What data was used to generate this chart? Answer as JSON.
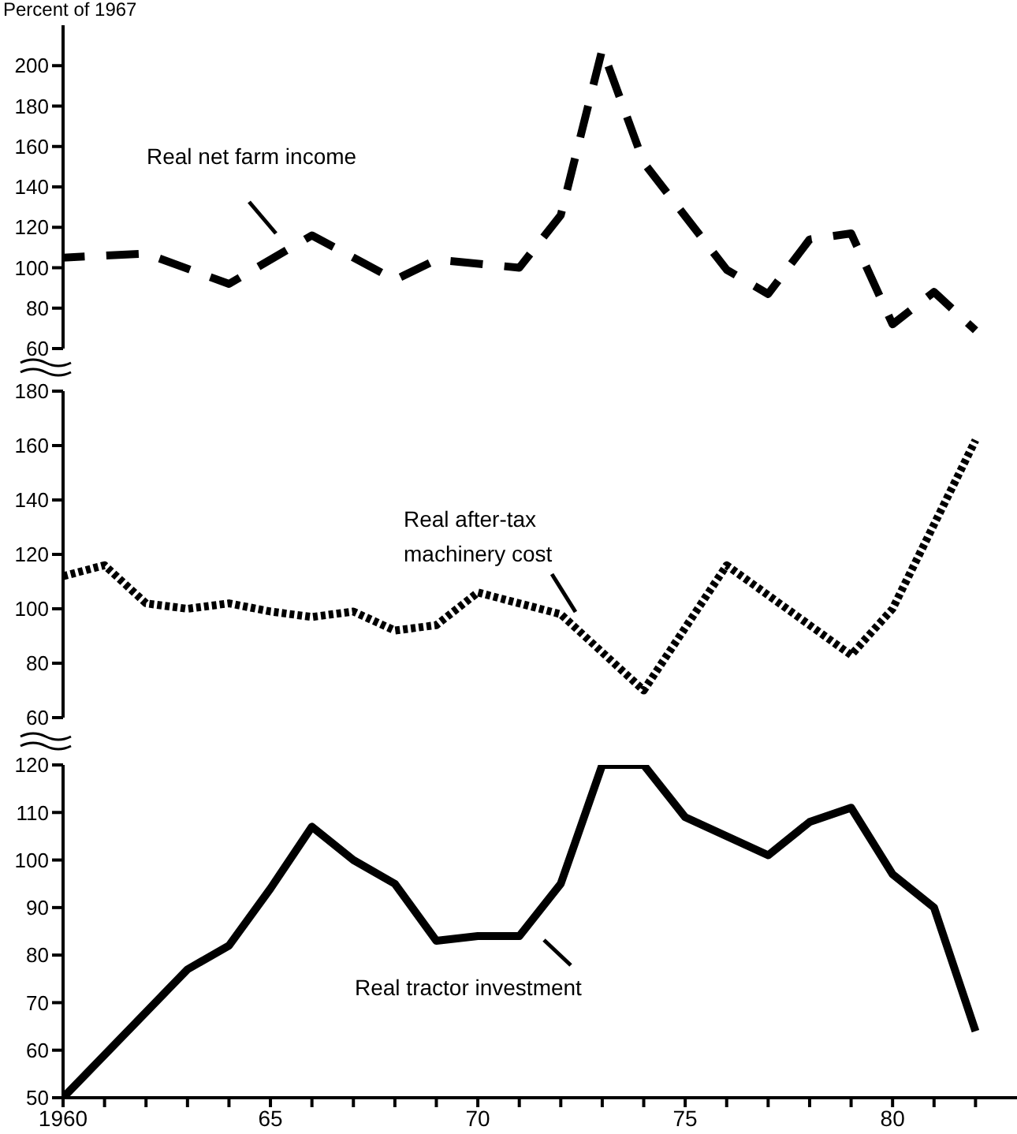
{
  "chart_data": [
    {
      "type": "line",
      "ylabel": "Percent of 1967",
      "xlim": [
        1960,
        1983
      ],
      "ylim": [
        60,
        220
      ],
      "yticks": [
        60,
        80,
        100,
        120,
        140,
        160,
        180,
        200
      ],
      "tick_labels": "y",
      "series": [
        {
          "name": "Real net farm income",
          "color": "#000000",
          "line_style": "dashed",
          "x": [
            1960,
            1962,
            1964,
            1966,
            1968,
            1969,
            1971,
            1972,
            1973,
            1974,
            1976,
            1977,
            1978,
            1979,
            1980,
            1981,
            1982
          ],
          "values": [
            105,
            107,
            92,
            116,
            94,
            104,
            100,
            126,
            208,
            152,
            99,
            87,
            114,
            117,
            72,
            88,
            69
          ]
        }
      ]
    },
    {
      "type": "line",
      "xlim": [
        1960,
        1983
      ],
      "ylim": [
        60,
        180
      ],
      "yticks": [
        60,
        80,
        100,
        120,
        140,
        160,
        180
      ],
      "tick_labels": "y",
      "series": [
        {
          "name": "Real after-tax machinery cost",
          "color": "#000000",
          "line_style": "dotted",
          "x": [
            1960,
            1961,
            1962,
            1963,
            1964,
            1965,
            1966,
            1967,
            1968,
            1969,
            1970,
            1972,
            1974,
            1976,
            1979,
            1980,
            1982
          ],
          "values": [
            112,
            116,
            102,
            100,
            102,
            99,
            97,
            99,
            92,
            94,
            106,
            98,
            70,
            116,
            83,
            100,
            162
          ]
        }
      ]
    },
    {
      "type": "line",
      "xlim": [
        1960,
        1983
      ],
      "xticks": [
        {
          "value": 1960,
          "label": "1960"
        },
        {
          "value": 1961,
          "label": null
        },
        {
          "value": 1962,
          "label": null
        },
        {
          "value": 1963,
          "label": null
        },
        {
          "value": 1964,
          "label": null
        },
        {
          "value": 1965,
          "label": "65"
        },
        {
          "value": 1966,
          "label": null
        },
        {
          "value": 1967,
          "label": null
        },
        {
          "value": 1968,
          "label": null
        },
        {
          "value": 1969,
          "label": null
        },
        {
          "value": 1970,
          "label": "70"
        },
        {
          "value": 1971,
          "label": null
        },
        {
          "value": 1972,
          "label": null
        },
        {
          "value": 1973,
          "label": null
        },
        {
          "value": 1974,
          "label": null
        },
        {
          "value": 1975,
          "label": "75"
        },
        {
          "value": 1976,
          "label": null
        },
        {
          "value": 1977,
          "label": null
        },
        {
          "value": 1978,
          "label": null
        },
        {
          "value": 1979,
          "label": null
        },
        {
          "value": 1980,
          "label": "80"
        },
        {
          "value": 1981,
          "label": null
        },
        {
          "value": 1982,
          "label": null
        }
      ],
      "ylim": [
        50,
        120
      ],
      "yticks": [
        50,
        60,
        70,
        80,
        90,
        100,
        110,
        120
      ],
      "series": [
        {
          "name": "Real tractor investment",
          "color": "#000000",
          "line_style": "solid",
          "x": [
            1960,
            1963,
            1964,
            1965,
            1966,
            1967,
            1968,
            1969,
            1970,
            1971,
            1972,
            1973,
            1974,
            1975,
            1977,
            1978,
            1979,
            1980,
            1981,
            1982
          ],
          "values": [
            50,
            77,
            82,
            94,
            107,
            100,
            95,
            83,
            84,
            84,
            95,
            120,
            120,
            109,
            101,
            108,
            111,
            97,
            90,
            64
          ]
        }
      ]
    }
  ]
}
